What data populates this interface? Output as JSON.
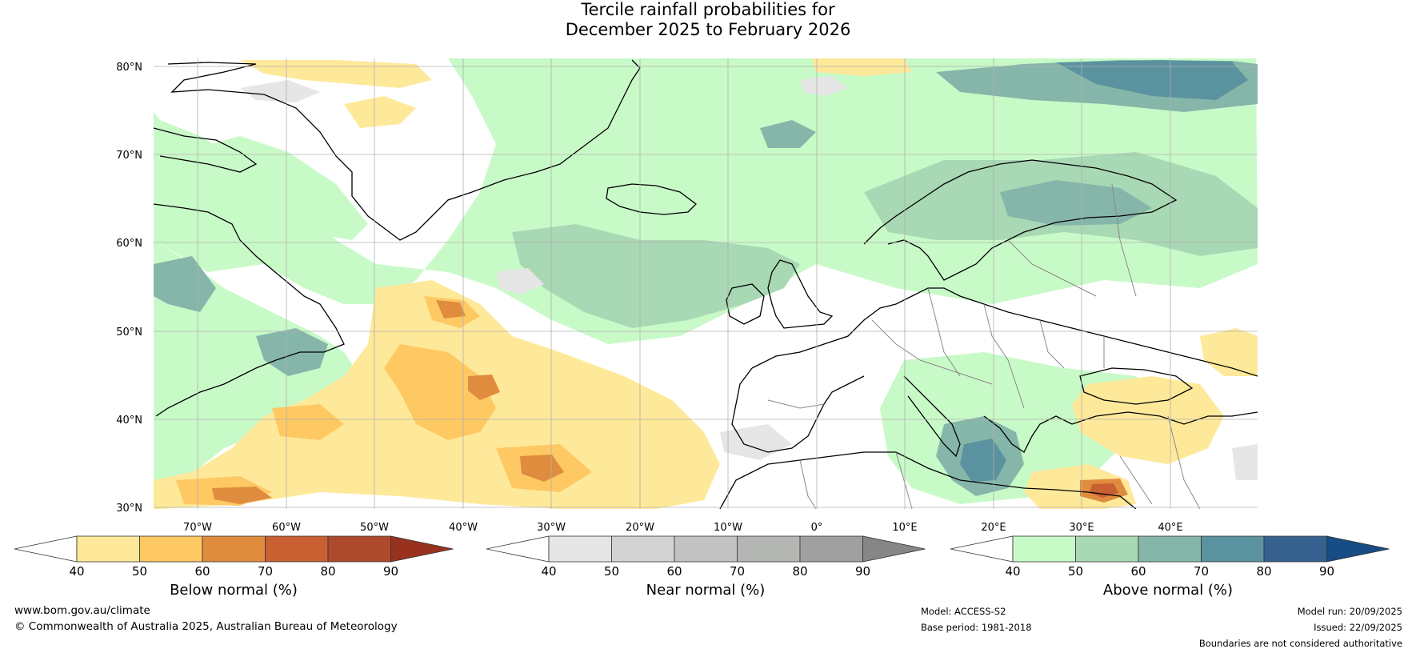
{
  "title_line1": "Tercile rainfall probabilities for",
  "title_line2": "December 2025 to February 2026",
  "lat_labels": [
    "80°N",
    "70°N",
    "60°N",
    "50°N",
    "40°N",
    "30°N"
  ],
  "lon_labels": [
    "70°W",
    "60°W",
    "50°W",
    "40°W",
    "30°W",
    "20°W",
    "10°W",
    "0°",
    "10°E",
    "20°E",
    "30°E",
    "40°E"
  ],
  "colorbars": [
    {
      "label": "Below normal (%)",
      "ticks": [
        "40",
        "50",
        "60",
        "70",
        "80",
        "90"
      ],
      "colors": [
        "#ffffff",
        "#fee99a",
        "#fec863",
        "#df8c3e",
        "#c86032",
        "#ae4a2c",
        "#98321f"
      ]
    },
    {
      "label": "Near normal (%)",
      "ticks": [
        "40",
        "50",
        "60",
        "70",
        "80",
        "90"
      ],
      "colors": [
        "#ffffff",
        "#e6e6e6",
        "#d3d3d3",
        "#c2c2c2",
        "#b4b6b3",
        "#a0a0a0",
        "#868686"
      ]
    },
    {
      "label": "Above normal (%)",
      "ticks": [
        "40",
        "50",
        "60",
        "70",
        "80",
        "90"
      ],
      "colors": [
        "#ffffff",
        "#c8fac8",
        "#a8d8b4",
        "#86b6aa",
        "#5b929f",
        "#36618f",
        "#174c84"
      ]
    }
  ],
  "footer": {
    "website": "www.bom.gov.au/climate",
    "copyright": "© Commonwealth of Australia 2025, Australian Bureau of Meteorology",
    "model": "Model: ACCESS-S2",
    "base_period": "Base period: 1981-2018",
    "model_run": "Model run: 20/09/2025",
    "issued": "Issued: 22/09/2025",
    "disclaimer": "Boundaries are not considered authoritative"
  },
  "colors": {
    "gridline": "#b0b0b0",
    "coast": "#000000",
    "border": "#888888"
  }
}
